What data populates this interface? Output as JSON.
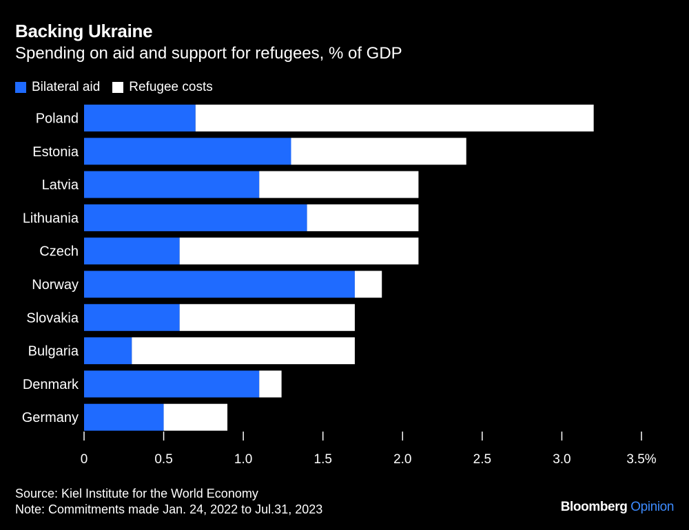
{
  "header": {
    "title": "Backing Ukraine",
    "subtitle": "Spending on aid and support for refugees, % of GDP"
  },
  "legend": [
    {
      "label": "Bilateral aid",
      "color": "#1f6bff"
    },
    {
      "label": "Refugee costs",
      "color": "#ffffff"
    }
  ],
  "footer": {
    "source": "Source: Kiel Institute for the World Economy",
    "note": "Note: Commitments made Jan. 24, 2022 to Jul.31, 2023"
  },
  "brand": {
    "name": "Bloomberg",
    "suffix": "Opinion"
  },
  "chart_data": {
    "type": "bar",
    "orientation": "horizontal",
    "stacked": true,
    "categories": [
      "Poland",
      "Estonia",
      "Latvia",
      "Lithuania",
      "Czech",
      "Norway",
      "Slovakia",
      "Bulgaria",
      "Denmark",
      "Germany"
    ],
    "series": [
      {
        "name": "Bilateral aid",
        "color": "#1f6bff",
        "values": [
          0.7,
          1.3,
          1.1,
          1.4,
          0.6,
          1.7,
          0.6,
          0.3,
          1.1,
          0.5
        ]
      },
      {
        "name": "Refugee costs",
        "color": "#ffffff",
        "values": [
          2.5,
          1.1,
          1.0,
          0.7,
          1.5,
          0.17,
          1.1,
          1.4,
          0.14,
          0.4
        ]
      }
    ],
    "xlim": [
      0,
      3.5
    ],
    "xticks": [
      0,
      0.5,
      1,
      1.5,
      2,
      2.5,
      3,
      3.5
    ],
    "xtick_labels": [
      "0",
      "0.5",
      "1.0",
      "1.5",
      "2.0",
      "2.5",
      "3.0",
      "3.5%"
    ],
    "title": "Backing Ukraine",
    "subtitle": "Spending on aid and support for refugees, % of GDP",
    "xlabel": "",
    "ylabel": "",
    "grid": false,
    "legend_position": "top-left"
  }
}
